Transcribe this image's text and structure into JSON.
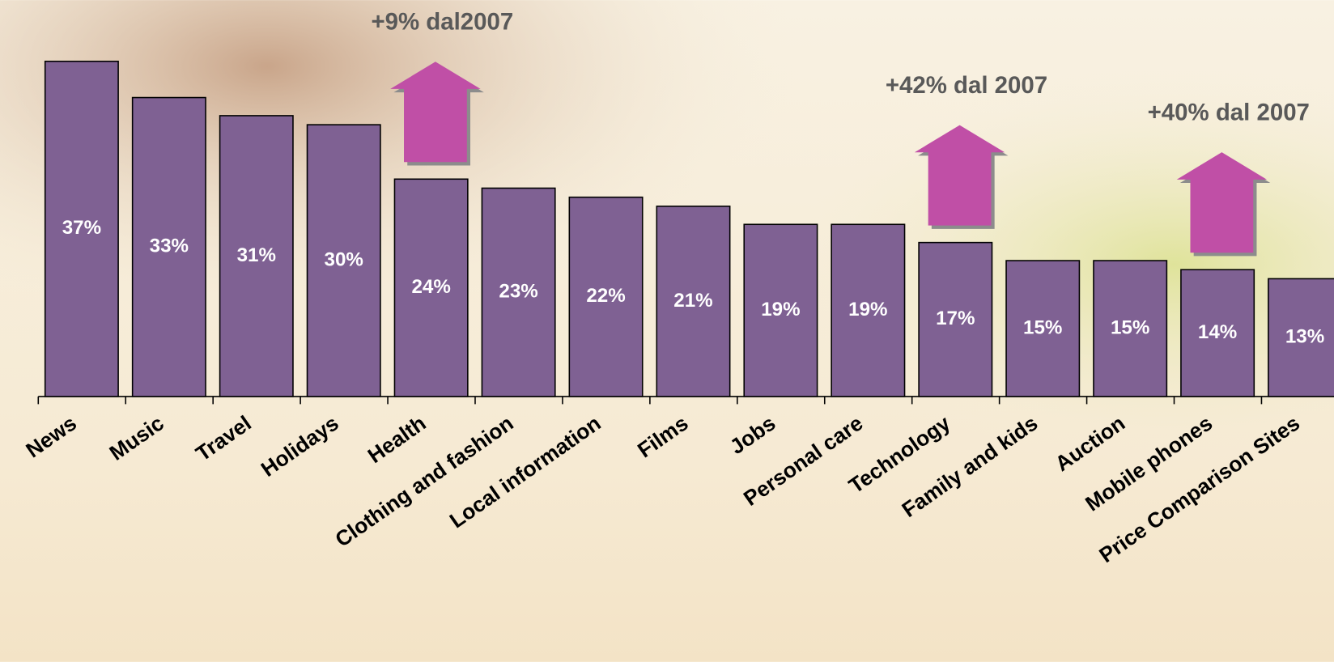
{
  "chart_data": {
    "type": "bar",
    "categories": [
      "News",
      "Music",
      "Travel",
      "Holidays",
      "Health",
      "Clothing and fashion",
      "Local information",
      "Films",
      "Jobs",
      "Personal care",
      "Technology",
      "Family and kids",
      "Auction",
      "Mobile phones",
      "Price Comparison Sites"
    ],
    "values": [
      37,
      33,
      31,
      30,
      24,
      23,
      22,
      21,
      19,
      19,
      17,
      15,
      15,
      14,
      13
    ],
    "value_labels": [
      "37%",
      "33%",
      "31%",
      "30%",
      "24%",
      "23%",
      "22%",
      "21%",
      "19%",
      "19%",
      "17%",
      "15%",
      "15%",
      "14%",
      "13%"
    ],
    "color": "#7f6193",
    "annotations": [
      {
        "text": "+9% dal2007",
        "category": "Health"
      },
      {
        "text": "+42% dal 2007",
        "category": "Technology"
      },
      {
        "text": "+40% dal 2007",
        "category": "Mobile phones"
      }
    ],
    "arrow_color": "#c04fa6"
  }
}
